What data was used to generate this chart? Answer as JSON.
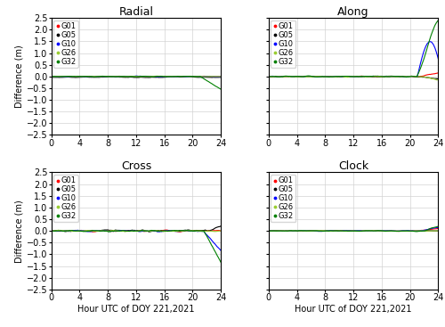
{
  "satellites": [
    "G01",
    "G05",
    "G10",
    "G26",
    "G32"
  ],
  "colors": [
    "red",
    "black",
    "blue",
    "#9acd32",
    "green"
  ],
  "titles": [
    "Radial",
    "Along",
    "Cross",
    "Clock"
  ],
  "xlabel": "Hour UTC of DOY 221,2021",
  "ylabel": "Difference (m)",
  "ylim": [
    -2.5,
    2.5
  ],
  "xlim": [
    0,
    24
  ],
  "xticks": [
    0,
    4,
    8,
    12,
    16,
    20,
    24
  ],
  "yticks": [
    -2.5,
    -2.0,
    -1.5,
    -1.0,
    -0.5,
    0.0,
    0.5,
    1.0,
    1.5,
    2.0,
    2.5
  ],
  "n_points": 480
}
